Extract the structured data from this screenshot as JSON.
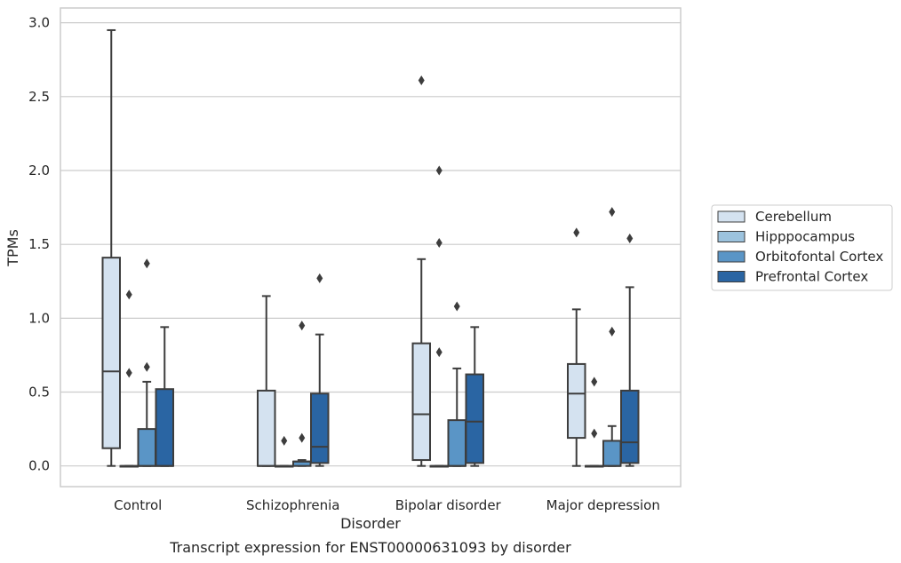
{
  "chart_data": {
    "type": "box",
    "title": "",
    "xlabel": "Disorder",
    "ylabel": "TPMs",
    "caption": "Transcript expression for ENST00000631093 by disorder",
    "ylim": [
      -0.14,
      3.1
    ],
    "yticks": [
      "0.0",
      "0.5",
      "1.0",
      "1.5",
      "2.0",
      "2.5",
      "3.0"
    ],
    "grid": true,
    "legend_position": "right",
    "categories": [
      "Control",
      "Schizophrenia",
      "Bipolar disorder",
      "Major depression"
    ],
    "series": [
      {
        "name": "Cerebellum",
        "color": "#d4e2f0",
        "boxes": [
          {
            "min": 0.0,
            "q1": 0.12,
            "median": 0.64,
            "q3": 1.41,
            "max": 2.95,
            "outliers": []
          },
          {
            "min": 0.0,
            "q1": 0.0,
            "median": 0.0,
            "q3": 0.51,
            "max": 1.15,
            "outliers": []
          },
          {
            "min": 0.0,
            "q1": 0.04,
            "median": 0.35,
            "q3": 0.83,
            "max": 1.4,
            "outliers": [
              2.61
            ]
          },
          {
            "min": 0.0,
            "q1": 0.19,
            "median": 0.49,
            "q3": 0.69,
            "max": 1.06,
            "outliers": [
              1.58
            ]
          }
        ]
      },
      {
        "name": "Hipppocampus",
        "color": "#9cc3de",
        "boxes": [
          {
            "min": 0.0,
            "q1": 0.0,
            "median": 0.0,
            "q3": 0.0,
            "max": 0.0,
            "outliers": [
              0.63,
              1.16
            ]
          },
          {
            "min": 0.0,
            "q1": 0.0,
            "median": 0.0,
            "q3": 0.0,
            "max": 0.0,
            "outliers": [
              0.17
            ]
          },
          {
            "min": 0.0,
            "q1": 0.0,
            "median": 0.0,
            "q3": 0.0,
            "max": 0.0,
            "outliers": [
              0.77,
              1.51,
              2.0
            ]
          },
          {
            "min": 0.0,
            "q1": 0.0,
            "median": 0.0,
            "q3": 0.0,
            "max": 0.0,
            "outliers": [
              0.22,
              0.57
            ]
          }
        ]
      },
      {
        "name": "Orbitofontal Cortex",
        "color": "#5a95c6",
        "boxes": [
          {
            "min": 0.0,
            "q1": 0.0,
            "median": 0.0,
            "q3": 0.25,
            "max": 0.57,
            "outliers": [
              0.67,
              1.37
            ]
          },
          {
            "min": 0.0,
            "q1": 0.0,
            "median": 0.03,
            "q3": 0.03,
            "max": 0.04,
            "outliers": [
              0.19,
              0.95
            ]
          },
          {
            "min": 0.0,
            "q1": 0.0,
            "median": 0.0,
            "q3": 0.31,
            "max": 0.66,
            "outliers": [
              1.08
            ]
          },
          {
            "min": 0.0,
            "q1": 0.0,
            "median": 0.0,
            "q3": 0.17,
            "max": 0.27,
            "outliers": [
              0.91,
              1.72
            ]
          }
        ]
      },
      {
        "name": "Prefrontal Cortex",
        "color": "#2a65a3",
        "boxes": [
          {
            "min": 0.0,
            "q1": 0.0,
            "median": 0.0,
            "q3": 0.52,
            "max": 0.94,
            "outliers": []
          },
          {
            "min": 0.0,
            "q1": 0.02,
            "median": 0.13,
            "q3": 0.49,
            "max": 0.89,
            "outliers": [
              1.27
            ]
          },
          {
            "min": 0.0,
            "q1": 0.02,
            "median": 0.3,
            "q3": 0.62,
            "max": 0.94,
            "outliers": []
          },
          {
            "min": 0.0,
            "q1": 0.02,
            "median": 0.16,
            "q3": 0.51,
            "max": 1.21,
            "outliers": [
              1.54
            ]
          }
        ]
      }
    ]
  }
}
